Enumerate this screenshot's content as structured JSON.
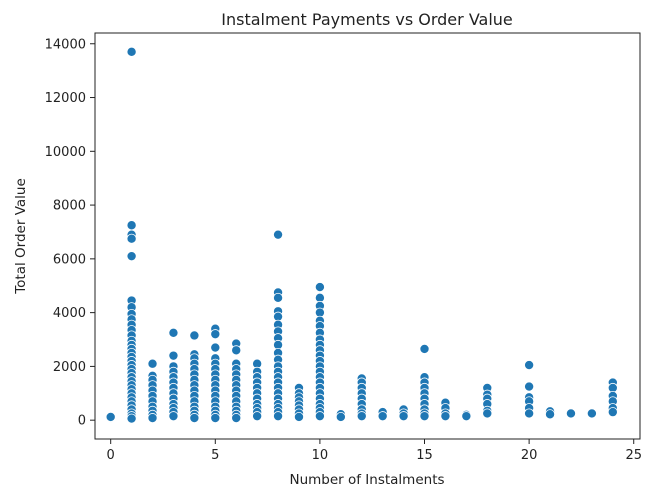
{
  "chart_data": {
    "type": "scatter",
    "title": "Instalment Payments vs Order Value",
    "xlabel": "Number of Instalments",
    "ylabel": "Total Order Value",
    "xlim": [
      -0.75,
      25.3
    ],
    "ylim": [
      -700,
      14400
    ],
    "xticks": [
      0,
      5,
      10,
      15,
      20,
      25
    ],
    "yticks": [
      0,
      2000,
      4000,
      6000,
      8000,
      10000,
      12000,
      14000
    ],
    "grid": false,
    "point_color": "#1f77b4",
    "point_edge_color": "#ffffff",
    "columns": [
      {
        "x": 0,
        "y": [
          100,
          120
        ]
      },
      {
        "x": 1,
        "y": [
          13700,
          7250,
          6900,
          6750,
          6100,
          4450,
          4200,
          3950,
          3750,
          3550,
          3350,
          3150,
          2950,
          2800,
          2650,
          2500,
          2350,
          2200,
          2050,
          1900,
          1750,
          1600,
          1450,
          1300,
          1150,
          1000,
          850,
          700,
          550,
          400,
          250,
          150,
          60
        ]
      },
      {
        "x": 2,
        "y": [
          2100,
          1650,
          1500,
          1300,
          1100,
          900,
          700,
          500,
          350,
          200,
          80
        ]
      },
      {
        "x": 3,
        "y": [
          3250,
          2400,
          2000,
          1800,
          1600,
          1400,
          1200,
          1000,
          800,
          600,
          450,
          300,
          150
        ]
      },
      {
        "x": 4,
        "y": [
          3150,
          2450,
          2300,
          2100,
          1900,
          1700,
          1500,
          1300,
          1100,
          900,
          700,
          500,
          350,
          200,
          80
        ]
      },
      {
        "x": 5,
        "y": [
          3400,
          3200,
          2700,
          2300,
          2100,
          1900,
          1700,
          1500,
          1300,
          1100,
          900,
          700,
          500,
          350,
          200,
          80
        ]
      },
      {
        "x": 6,
        "y": [
          2850,
          2600,
          2100,
          1900,
          1700,
          1500,
          1300,
          1100,
          900,
          700,
          500,
          350,
          200,
          80
        ]
      },
      {
        "x": 7,
        "y": [
          2100,
          1800,
          1600,
          1400,
          1200,
          1000,
          800,
          600,
          450,
          300,
          150
        ]
      },
      {
        "x": 8,
        "y": [
          6900,
          4750,
          4550,
          4050,
          3850,
          3550,
          3300,
          3050,
          2800,
          2500,
          2250,
          2000,
          1800,
          1600,
          1400,
          1200,
          1000,
          800,
          600,
          450,
          300,
          150
        ]
      },
      {
        "x": 9,
        "y": [
          1200,
          1000,
          850,
          700,
          550,
          400,
          250,
          120
        ]
      },
      {
        "x": 10,
        "y": [
          4950,
          4550,
          4250,
          4000,
          3700,
          3500,
          3250,
          3000,
          2800,
          2600,
          2400,
          2200,
          2000,
          1800,
          1600,
          1400,
          1200,
          1000,
          800,
          600,
          450,
          300,
          150
        ]
      },
      {
        "x": 11,
        "y": [
          220,
          120
        ]
      },
      {
        "x": 12,
        "y": [
          1550,
          1400,
          1200,
          1000,
          800,
          600,
          400,
          250,
          150
        ]
      },
      {
        "x": 13,
        "y": [
          300,
          150
        ]
      },
      {
        "x": 14,
        "y": [
          400,
          250,
          150
        ]
      },
      {
        "x": 15,
        "y": [
          2650,
          1600,
          1400,
          1200,
          1000,
          800,
          600,
          400,
          250,
          150
        ]
      },
      {
        "x": 16,
        "y": [
          650,
          450,
          250,
          150
        ]
      },
      {
        "x": 17,
        "y": [
          200,
          150
        ]
      },
      {
        "x": 18,
        "y": [
          1200,
          950,
          800,
          600,
          350,
          250
        ]
      },
      {
        "x": 20,
        "y": [
          2050,
          1250,
          850,
          700,
          450,
          250
        ]
      },
      {
        "x": 21,
        "y": [
          330,
          220
        ]
      },
      {
        "x": 22,
        "y": [
          250
        ]
      },
      {
        "x": 23,
        "y": [
          250
        ]
      },
      {
        "x": 24,
        "y": [
          1400,
          1200,
          900,
          700,
          450,
          300
        ]
      }
    ]
  }
}
